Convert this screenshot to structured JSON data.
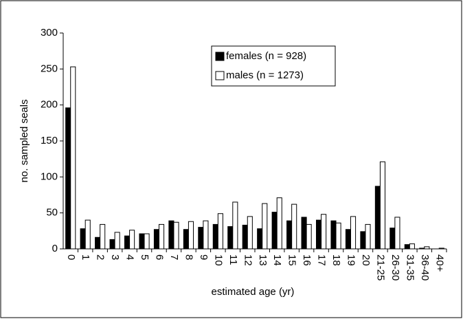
{
  "chart_data": {
    "type": "bar",
    "x_label": "estimated age (yr)",
    "y_label": "no. sampled seals",
    "categories": [
      "0",
      "1",
      "2",
      "3",
      "4",
      "5",
      "6",
      "7",
      "8",
      "9",
      "10",
      "11",
      "12",
      "13",
      "14",
      "15",
      "16",
      "17",
      "18",
      "19",
      "20",
      "21-25",
      "26-30",
      "31-35",
      "36-40",
      "40+"
    ],
    "series": [
      {
        "name": "females (n = 928)",
        "color": "#000000",
        "values": [
          196,
          28,
          16,
          13,
          18,
          21,
          27,
          39,
          27,
          30,
          34,
          31,
          33,
          28,
          51,
          39,
          44,
          40,
          39,
          27,
          24,
          87,
          29,
          6,
          1,
          0
        ]
      },
      {
        "name": "males (n = 1273)",
        "color": "#ffffff",
        "values": [
          253,
          40,
          34,
          23,
          26,
          21,
          34,
          37,
          38,
          39,
          49,
          65,
          45,
          63,
          71,
          62,
          34,
          48,
          36,
          45,
          34,
          121,
          44,
          7,
          3,
          1
        ]
      }
    ],
    "ylim": [
      0,
      300
    ],
    "yticks": [
      0,
      50,
      100,
      150,
      200,
      250,
      300
    ],
    "grid": false,
    "legend": "top"
  }
}
